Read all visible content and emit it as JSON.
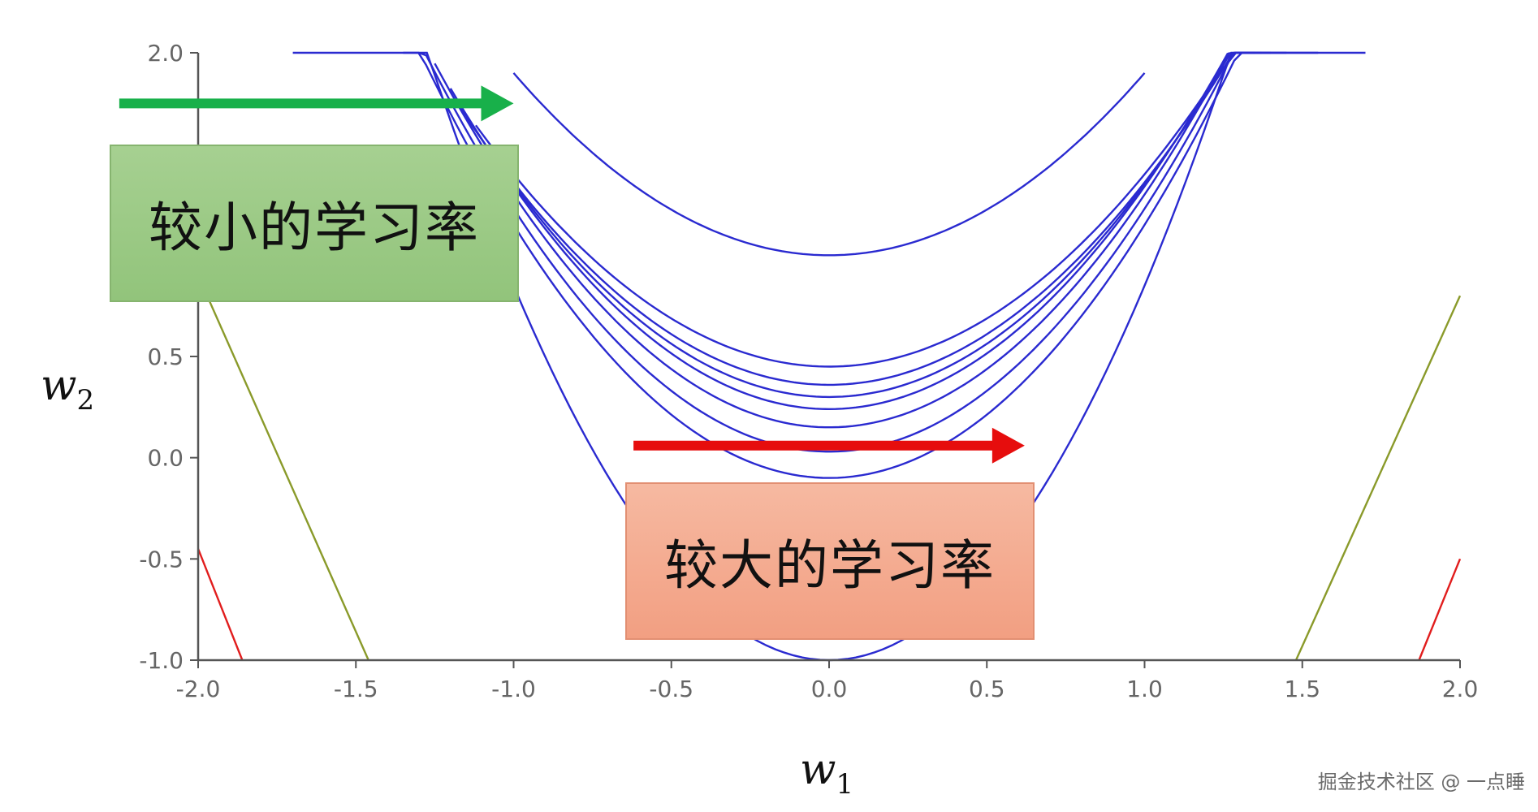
{
  "chart_data": {
    "type": "contour",
    "title": "",
    "xlabel": "w",
    "xlabel_sub": "1",
    "ylabel": "w",
    "ylabel_sub": "2",
    "xlim": [
      -2.0,
      2.0
    ],
    "ylim": [
      -1.0,
      2.0
    ],
    "x_ticks": [
      -2.0,
      -1.5,
      -1.0,
      -0.5,
      0.0,
      0.5,
      1.0,
      1.5,
      2.0
    ],
    "x_tick_labels": [
      "-2.0",
      "-1.5",
      "-1.0",
      "-0.5",
      "0.0",
      "0.5",
      "1.0",
      "1.5",
      "2.0"
    ],
    "y_ticks": [
      -1.0,
      -0.5,
      0.0,
      0.5,
      2.0
    ],
    "y_tick_labels": [
      "-1.0",
      "-0.5",
      "0.0",
      "0.5",
      "2.0"
    ],
    "grid": false,
    "contour_color": "#2a2ad0",
    "contours": [
      {
        "vertex": [
          0.0,
          1.0
        ],
        "curvature": 0.9,
        "x_range": [
          -1.0,
          1.0
        ]
      },
      {
        "vertex": [
          0.0,
          0.45
        ],
        "curvature": 0.95,
        "x_range": [
          -1.12,
          1.25
        ]
      },
      {
        "vertex": [
          0.0,
          0.36
        ],
        "curvature": 1.0,
        "x_range": [
          -1.15,
          1.3
        ]
      },
      {
        "vertex": [
          0.0,
          0.3
        ],
        "curvature": 1.05,
        "x_range": [
          -1.18,
          1.35
        ]
      },
      {
        "vertex": [
          0.0,
          0.24
        ],
        "curvature": 1.1,
        "x_range": [
          -1.2,
          1.37
        ]
      },
      {
        "vertex": [
          0.0,
          0.15
        ],
        "curvature": 1.15,
        "x_range": [
          -1.25,
          1.4
        ]
      },
      {
        "vertex": [
          0.0,
          0.03
        ],
        "curvature": 1.2,
        "x_range": [
          -1.3,
          1.45
        ]
      },
      {
        "vertex": [
          0.0,
          -0.1
        ],
        "curvature": 1.25,
        "x_range": [
          -1.35,
          1.55
        ]
      },
      {
        "vertex": [
          0.0,
          -1.0
        ],
        "curvature": 1.85,
        "x_range": [
          -1.7,
          1.7
        ]
      }
    ],
    "boundary_lines": [
      {
        "color": "#8a9a2a",
        "points": [
          [
            -2.0,
            0.9
          ],
          [
            -1.46,
            -1.0
          ]
        ]
      },
      {
        "color": "#8a9a2a",
        "points": [
          [
            1.48,
            -1.0
          ],
          [
            2.0,
            0.8
          ]
        ]
      },
      {
        "color": "#e11d1d",
        "points": [
          [
            -2.0,
            -0.45
          ],
          [
            -1.86,
            -1.0
          ]
        ]
      },
      {
        "color": "#e11d1d",
        "points": [
          [
            1.87,
            -1.0
          ],
          [
            2.0,
            -0.5
          ]
        ]
      }
    ],
    "arrows": [
      {
        "name": "small-lr-arrow",
        "color": "#18b04a",
        "from": [
          -2.25,
          1.75
        ],
        "to": [
          -1.0,
          1.75
        ]
      },
      {
        "name": "large-lr-arrow",
        "color": "#e60d0d",
        "from": [
          -0.62,
          0.06
        ],
        "to": [
          0.62,
          0.06
        ]
      }
    ]
  },
  "annotations": {
    "small_lr": {
      "text": "较小的学习率",
      "color": "#9ccb86"
    },
    "large_lr": {
      "text": "较大的学习率",
      "color": "#f4ad92"
    }
  },
  "watermark": "掘金技术社区 @ 一点睡"
}
